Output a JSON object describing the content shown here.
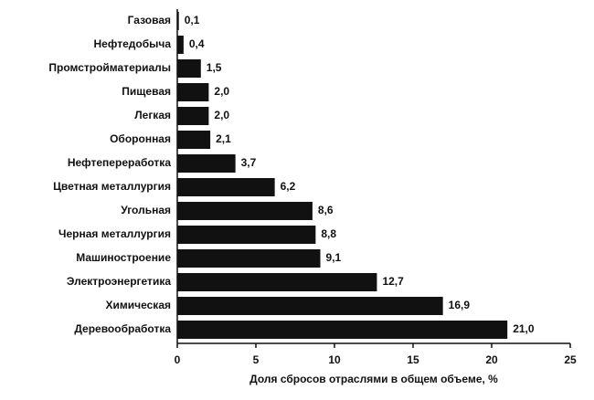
{
  "chart_data": {
    "type": "barh",
    "xlabel": "Доля сбросов отраслями в общем объеме, %",
    "categories": [
      "Газовая",
      "Нефтедобыча",
      "Промстройматериалы",
      "Пищевая",
      "Легкая",
      "Оборонная",
      "Нефтепереработка",
      "Цветная металлургия",
      "Угольная",
      "Черная металлургия",
      "Машиностроение",
      "Электроэнергетика",
      "Химическая",
      "Деревообработка"
    ],
    "values": [
      0.1,
      0.4,
      1.5,
      2.0,
      2.0,
      2.1,
      3.7,
      6.2,
      8.6,
      8.8,
      9.1,
      12.7,
      16.9,
      21.0
    ],
    "value_labels": [
      "0,1",
      "0,4",
      "1,5",
      "2,0",
      "2,0",
      "2,1",
      "3,7",
      "6,2",
      "8,6",
      "8,8",
      "9,1",
      "12,7",
      "16,9",
      "21,0"
    ],
    "color": "#111111",
    "xlim": [
      0,
      25
    ],
    "xticks": [
      0,
      5,
      10,
      15,
      20,
      25
    ],
    "grid": false
  }
}
